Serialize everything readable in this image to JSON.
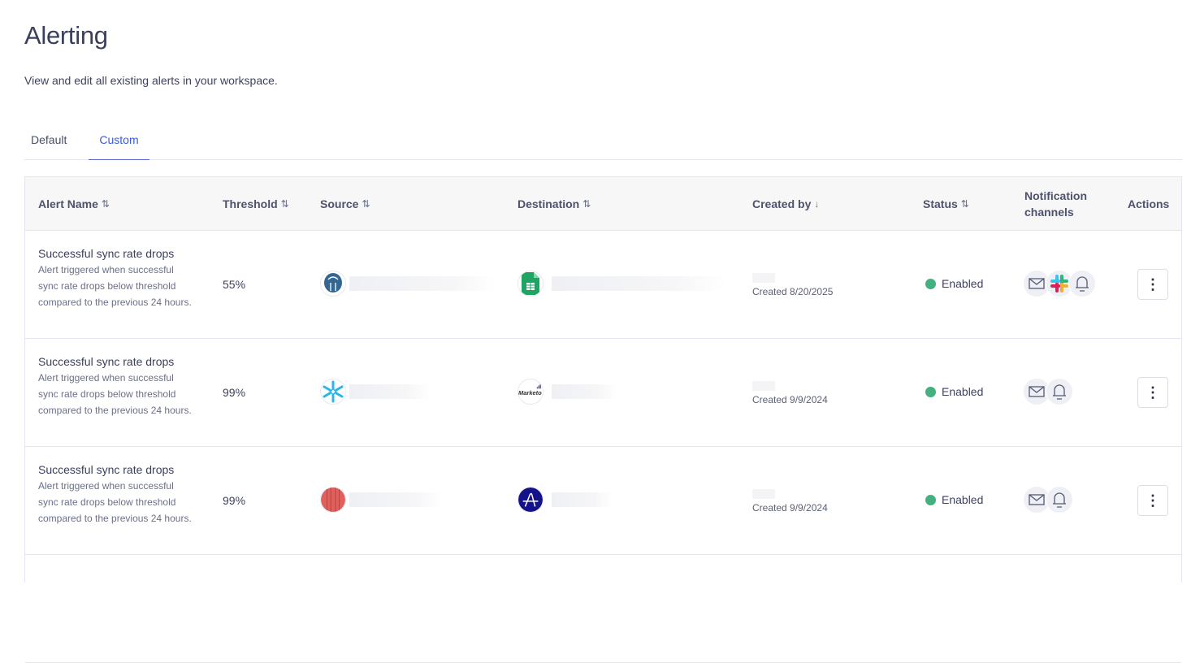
{
  "page": {
    "title": "Alerting",
    "subtitle": "View and edit all existing alerts in your workspace."
  },
  "tabs": [
    {
      "label": "Default",
      "active": false
    },
    {
      "label": "Custom",
      "active": true
    }
  ],
  "table": {
    "columns": [
      {
        "label": "Alert Name",
        "sort": "⇅"
      },
      {
        "label": "Threshold",
        "sort": "⇅"
      },
      {
        "label": "Source",
        "sort": "⇅"
      },
      {
        "label": "Destination",
        "sort": "⇅"
      },
      {
        "label": "Created by",
        "sort": "↓"
      },
      {
        "label": "Status",
        "sort": "⇅"
      },
      {
        "label": "Notification channels"
      },
      {
        "label": "Actions"
      }
    ],
    "rows": [
      {
        "name": "Successful sync rate drops",
        "description": "Alert triggered when successful sync rate drops below threshold compared to the previous 24 hours.",
        "threshold": "55%",
        "source_icon": "postgresql",
        "destination_icon": "google-sheets",
        "created": "Created 8/20/2025",
        "status": "Enabled",
        "channels": [
          "email",
          "slack",
          "in-app-bell"
        ]
      },
      {
        "name": "Successful sync rate drops",
        "description": "Alert triggered when successful sync rate drops below threshold compared to the previous 24 hours.",
        "threshold": "99%",
        "source_icon": "snowflake",
        "destination_icon": "marketo",
        "destination_logo_text": "Marketo",
        "created": "Created 9/9/2024",
        "status": "Enabled",
        "channels": [
          "email",
          "in-app-bell"
        ]
      },
      {
        "name": "Successful sync rate drops",
        "description": "Alert triggered when successful sync rate drops below threshold compared to the previous 24 hours.",
        "threshold": "99%",
        "source_icon": "amazon-redshift",
        "destination_icon": "amplitude",
        "created": "Created 9/9/2024",
        "status": "Enabled",
        "channels": [
          "email",
          "in-app-bell"
        ]
      }
    ]
  },
  "colors": {
    "accent": "#3a5bd9",
    "enabled": "#44b07f"
  }
}
